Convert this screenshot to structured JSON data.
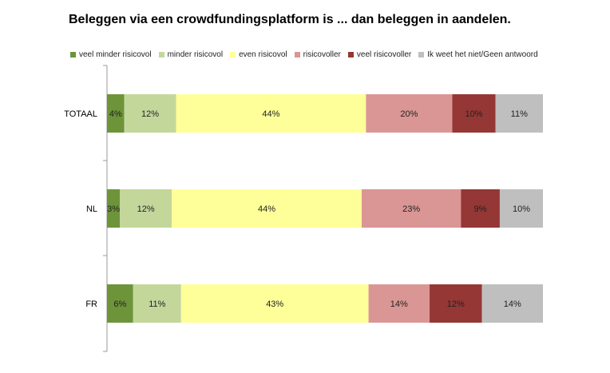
{
  "chart_data": {
    "type": "bar",
    "orientation": "horizontal",
    "stacked": true,
    "percent": true,
    "title": "Beleggen via een crowdfundingsplatform is ... dan beleggen in aandelen.",
    "categories": [
      "TOTAAL",
      "NL",
      "FR"
    ],
    "series": [
      {
        "name": "veel minder risicovol",
        "color": "#6e9439",
        "values": [
          4,
          3,
          6
        ],
        "labels": [
          "4%",
          "3%",
          "6%"
        ]
      },
      {
        "name": "minder risicovol",
        "color": "#c4d79b",
        "values": [
          12,
          12,
          11
        ],
        "labels": [
          "12%",
          "12%",
          "11%"
        ]
      },
      {
        "name": "even risicovol",
        "color": "#ffff99",
        "values": [
          44,
          44,
          43
        ],
        "labels": [
          "44%",
          "44%",
          "43%"
        ]
      },
      {
        "name": "risicovoller",
        "color": "#da9694",
        "values": [
          20,
          23,
          14
        ],
        "labels": [
          "20%",
          "23%",
          "14%"
        ]
      },
      {
        "name": "veel risicovoller",
        "color": "#953735",
        "values": [
          10,
          9,
          12
        ],
        "labels": [
          "10%",
          "9%",
          "12%"
        ]
      },
      {
        "name": "Ik weet het niet/Geen antwoord",
        "color": "#bfbfbf",
        "values": [
          11,
          10,
          14
        ],
        "labels": [
          "11%",
          "10%",
          "14%"
        ]
      }
    ],
    "legend_position": "top",
    "grid": false
  }
}
